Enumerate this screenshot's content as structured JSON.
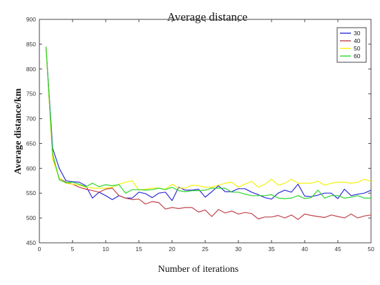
{
  "chart_data": {
    "type": "line",
    "title": "Average distance",
    "xlabel": "Number of iterations",
    "ylabel": "Average distance/km",
    "xlim": [
      0,
      50
    ],
    "ylim": [
      450,
      900
    ],
    "xticks": [
      0,
      5,
      10,
      15,
      20,
      25,
      30,
      35,
      40,
      45,
      50
    ],
    "yticks": [
      450,
      500,
      550,
      600,
      650,
      700,
      750,
      800,
      850,
      900
    ],
    "grid": false,
    "legend": {
      "position": "top-right"
    },
    "x": [
      1,
      2,
      3,
      4,
      5,
      6,
      7,
      8,
      9,
      10,
      11,
      12,
      13,
      14,
      15,
      16,
      17,
      18,
      19,
      20,
      21,
      22,
      23,
      24,
      25,
      26,
      27,
      28,
      29,
      30,
      31,
      32,
      33,
      34,
      35,
      36,
      37,
      38,
      39,
      40,
      41,
      42,
      43,
      44,
      45,
      46,
      47,
      48,
      49,
      50
    ],
    "series": [
      {
        "name": "30",
        "color": "#2b2bd6",
        "values": [
          845,
          640,
          600,
          575,
          573,
          572,
          565,
          540,
          552,
          545,
          537,
          545,
          540,
          540,
          552,
          549,
          541,
          550,
          552,
          535,
          562,
          556,
          556,
          558,
          542,
          553,
          565,
          553,
          553,
          559,
          559,
          552,
          547,
          541,
          538,
          550,
          556,
          552,
          568,
          544,
          543,
          546,
          550,
          550,
          539,
          558,
          545,
          548,
          550,
          556
        ]
      },
      {
        "name": "40",
        "color": "#c0404a",
        "values": [
          845,
          620,
          580,
          572,
          568,
          562,
          558,
          555,
          552,
          558,
          560,
          545,
          540,
          537,
          538,
          528,
          533,
          531,
          518,
          521,
          519,
          521,
          521,
          512,
          516,
          503,
          517,
          510,
          514,
          508,
          511,
          509,
          498,
          502,
          502,
          505,
          500,
          506,
          497,
          508,
          505,
          503,
          501,
          506,
          503,
          500,
          508,
          500,
          504,
          506
        ]
      },
      {
        "name": "50",
        "color": "#f2f20a",
        "values": [
          845,
          618,
          580,
          570,
          568,
          566,
          562,
          560,
          560,
          560,
          562,
          568,
          572,
          575,
          556,
          558,
          560,
          560,
          558,
          568,
          560,
          560,
          566,
          565,
          562,
          562,
          566,
          570,
          572,
          562,
          568,
          574,
          562,
          568,
          578,
          566,
          570,
          578,
          570,
          570,
          570,
          574,
          566,
          570,
          572,
          572,
          570,
          572,
          578,
          574
        ]
      },
      {
        "name": "60",
        "color": "#2ad62a",
        "values": [
          845,
          630,
          577,
          571,
          572,
          568,
          563,
          570,
          563,
          567,
          565,
          567,
          550,
          557,
          557,
          556,
          557,
          560,
          557,
          562,
          555,
          553,
          555,
          555,
          556,
          560,
          560,
          560,
          552,
          552,
          548,
          545,
          545,
          545,
          547,
          540,
          539,
          540,
          545,
          539,
          541,
          556,
          540,
          545,
          545,
          540,
          542,
          545,
          540,
          540
        ]
      }
    ]
  }
}
